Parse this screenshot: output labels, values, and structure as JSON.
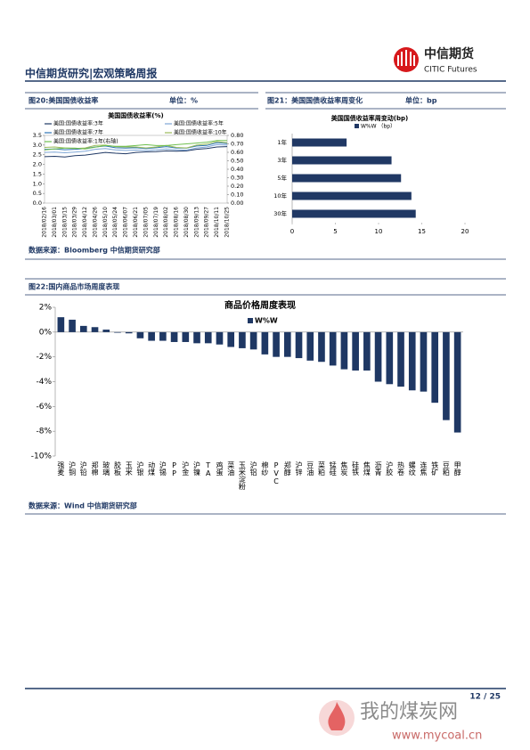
{
  "header": {
    "title": "中信期货研究|宏观策略周报",
    "logo_cn": "中信期货",
    "logo_en": "CITIC Futures"
  },
  "figures": [
    {
      "caption": "图20:美国国债收益率",
      "unit": "单位：%",
      "chart_data": {
        "type": "line",
        "title": "美国国债收益率(%)",
        "categories": [
          "2018/02/16",
          "2018/03/01",
          "2018/03/15",
          "2018/03/29",
          "2018/04/12",
          "2018/04/26",
          "2018/05/10",
          "2018/05/24",
          "2018/06/07",
          "2018/06/21",
          "2018/07/05",
          "2018/07/19",
          "2018/08/02",
          "2018/08/16",
          "2018/08/30",
          "2018/09/13",
          "2018/09/27",
          "2018/10/11",
          "2018/10/25"
        ],
        "series": [
          {
            "name": "美国:国债收益率:3年",
            "color": "#1f3864",
            "values": [
              2.4,
              2.42,
              2.38,
              2.45,
              2.48,
              2.55,
              2.62,
              2.58,
              2.55,
              2.62,
              2.65,
              2.66,
              2.7,
              2.68,
              2.7,
              2.78,
              2.82,
              2.9,
              2.92
            ]
          },
          {
            "name": "美国:国债收益率:5年",
            "color": "#7fa7d6",
            "values": [
              2.62,
              2.64,
              2.6,
              2.64,
              2.68,
              2.78,
              2.82,
              2.75,
              2.72,
              2.74,
              2.72,
              2.75,
              2.8,
              2.75,
              2.74,
              2.85,
              2.9,
              3.02,
              3.0
            ]
          },
          {
            "name": "美国:国债收益率:7年",
            "color": "#2e75b6",
            "values": [
              2.78,
              2.8,
              2.76,
              2.78,
              2.82,
              2.9,
              2.95,
              2.86,
              2.84,
              2.86,
              2.82,
              2.86,
              2.92,
              2.85,
              2.84,
              2.95,
              2.98,
              3.12,
              3.08
            ]
          },
          {
            "name": "美国:国债收益率:10年",
            "color": "#9bbb59",
            "values": [
              2.88,
              2.9,
              2.85,
              2.82,
              2.85,
              2.98,
              3.0,
              2.92,
              2.9,
              2.9,
              2.85,
              2.9,
              2.98,
              2.88,
              2.85,
              3.0,
              3.05,
              3.18,
              3.12
            ]
          },
          {
            "name": "美国:国债收益率:1年(右轴)",
            "color": "#70c050",
            "axis": "y2",
            "values": [
              0.63,
              0.64,
              0.65,
              0.65,
              0.64,
              0.66,
              0.68,
              0.67,
              0.67,
              0.68,
              0.69,
              0.68,
              0.68,
              0.69,
              0.7,
              0.71,
              0.72,
              0.74,
              0.74
            ]
          }
        ],
        "ylim": [
          0,
          3.5
        ],
        "yticks": [
          {
            "value": 0,
            "label": "0.0"
          },
          0.5,
          {
            "value": 1,
            "label": "1.0"
          },
          1.5,
          {
            "value": 2,
            "label": "2.0"
          },
          2.5,
          {
            "value": 3,
            "label": "3.0"
          },
          3.5
        ],
        "y2lim": [
          0,
          0.8
        ],
        "y2ticks": [
          {
            "value": 0,
            "label": "0.00"
          },
          {
            "value": 0.1,
            "label": "0.10"
          },
          {
            "value": 0.2,
            "label": "0.20"
          },
          {
            "value": 0.3,
            "label": "0.30"
          },
          {
            "value": 0.4,
            "label": "0.40"
          },
          {
            "value": 0.5,
            "label": "0.50"
          },
          {
            "value": 0.6,
            "label": "0.60"
          },
          {
            "value": 0.7,
            "label": "0.70"
          },
          {
            "value": 0.8,
            "label": "0.80"
          }
        ]
      }
    },
    {
      "caption": "图21：美国国债收益率周变化",
      "unit": "单位：bp",
      "chart_data": {
        "type": "hbar",
        "title": "美国国债收益率周变动(bp)",
        "categories": [
          "1年",
          "3年",
          "5年",
          "10年",
          "30年"
        ],
        "series": [
          {
            "name": "W%W （bp）",
            "color": "#203864",
            "values": [
              6.3,
              11.5,
              12.6,
              13.8,
              14.3
            ]
          }
        ],
        "xlim": [
          0,
          20
        ],
        "xticks": [
          0,
          5,
          10,
          15,
          20
        ]
      }
    },
    {
      "caption": "图22:国内商品市场周度表现",
      "chart_data": {
        "type": "bar",
        "title": "商品价格周度表现",
        "categories": [
          "强麦",
          "沪铜",
          "沪铅",
          "郑棉",
          "玻璃",
          "胶板",
          "玉米",
          "沪银",
          "动煤",
          "沪锡",
          "PP",
          "沪金",
          "沪镍",
          "TA",
          "鸡蛋",
          "菜油",
          "玉米淀粉",
          "沪铝",
          "棉纱",
          "PVC",
          "郑醇",
          "沪锌",
          "豆油",
          "菜粕",
          "锰硅",
          "焦炭",
          "硅铁",
          "焦煤",
          "沥青",
          "沪胶",
          "热卷",
          "螺纹",
          "连焦",
          "铁矿",
          "豆粕",
          "甲醇"
        ],
        "series": [
          {
            "name": "W%W",
            "color": "#1f3864",
            "values": [
              1.2,
              1.0,
              0.5,
              0.4,
              0.2,
              -0.05,
              -0.1,
              -0.5,
              -0.7,
              -0.7,
              -0.8,
              -0.8,
              -0.9,
              -0.9,
              -1.0,
              -1.2,
              -1.3,
              -1.4,
              -1.8,
              -2.0,
              -2.0,
              -2.1,
              -2.3,
              -2.4,
              -2.7,
              -3.0,
              -3.1,
              -3.1,
              -4.0,
              -4.2,
              -4.4,
              -4.7,
              -4.8,
              -5.7,
              -7.1,
              -8.1
            ]
          }
        ],
        "ylim": [
          -10,
          2
        ],
        "yticks": [
          {
            "value": -10,
            "label": "-10%"
          },
          {
            "value": -8,
            "label": "-8%"
          },
          {
            "value": -6,
            "label": "-6%"
          },
          {
            "value": -4,
            "label": "-4%"
          },
          {
            "value": -2,
            "label": "-2%"
          },
          {
            "value": 0,
            "label": "0%"
          },
          {
            "value": 2,
            "label": "2%"
          }
        ]
      }
    }
  ],
  "sources": [
    "数据来源：Bloomberg  中信期货研究部",
    "数据来源：Wind  中信期货研究部"
  ],
  "footer": {
    "page": "12 / 25"
  },
  "watermark": {
    "name": "我的煤炭网",
    "url": "www.mycoal.cn"
  }
}
